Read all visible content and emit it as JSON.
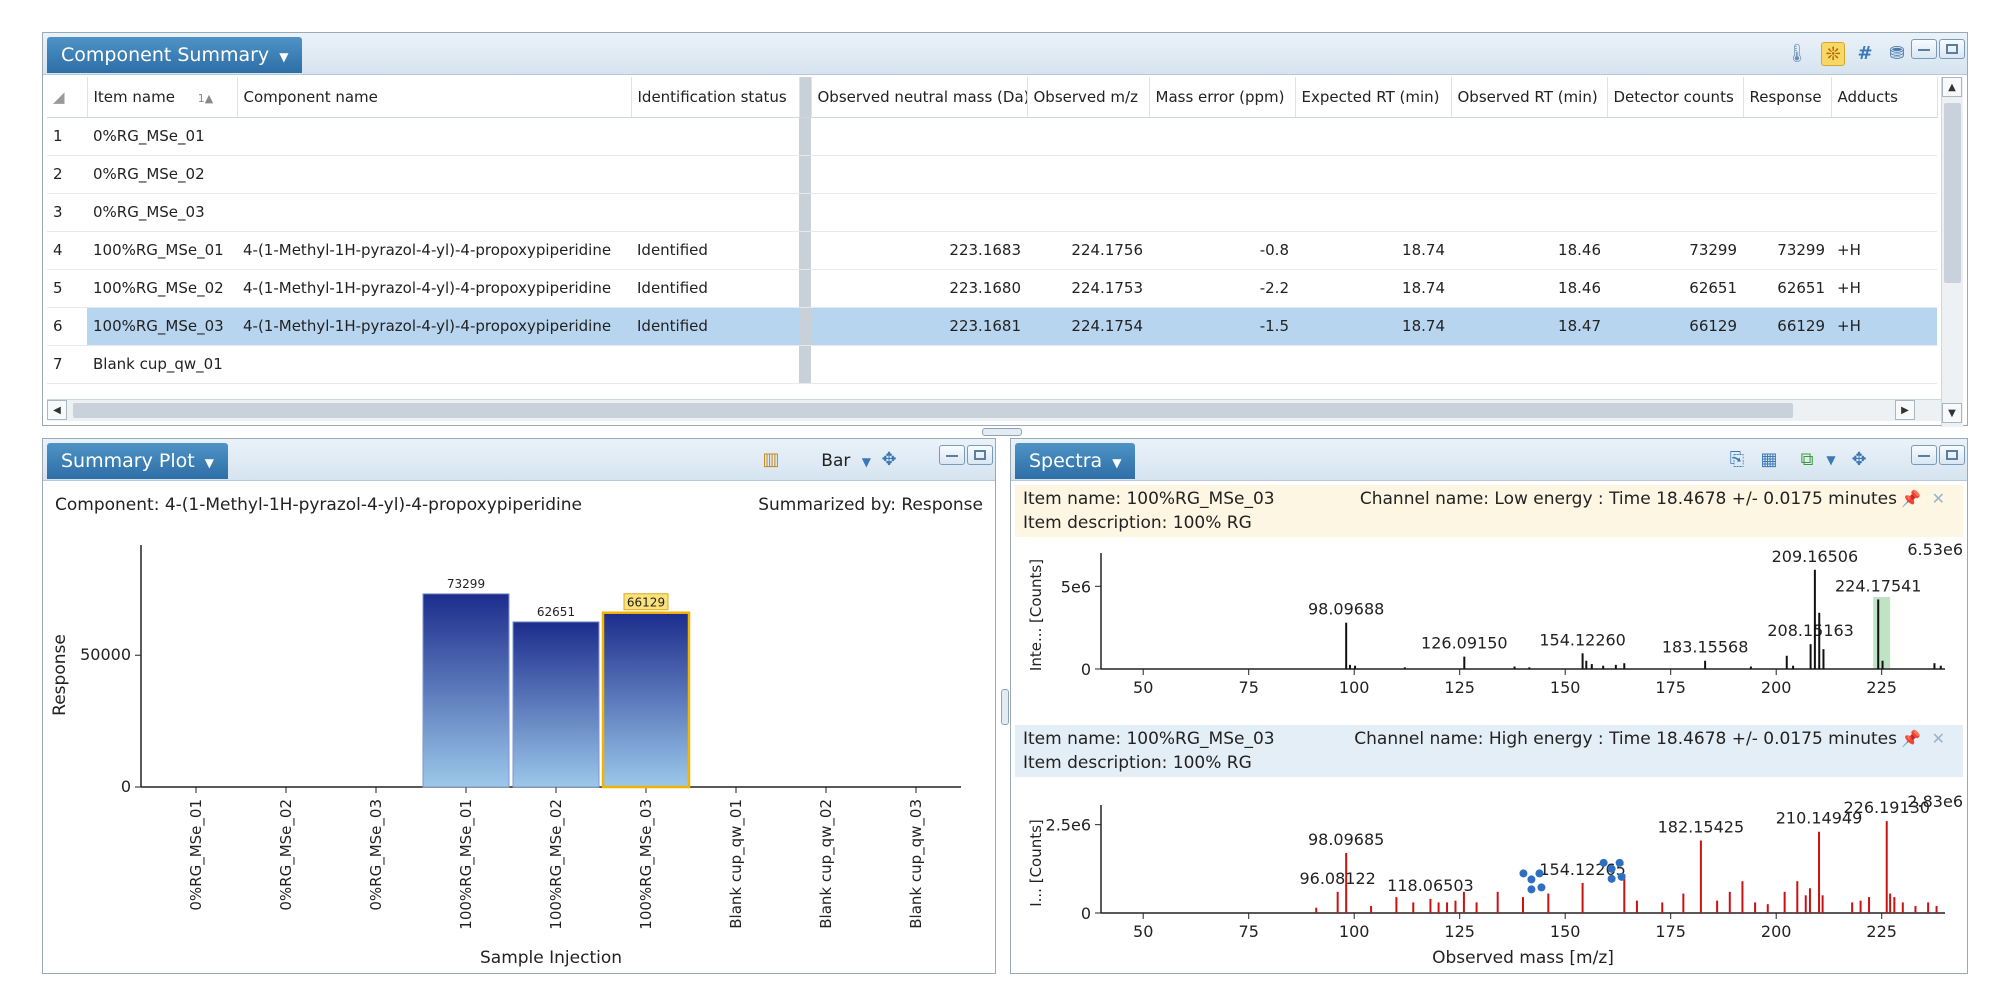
{
  "component_summary": {
    "title": "Component Summary",
    "columns": [
      "Item name",
      "Component name",
      "Identification status",
      "Observed neutral mass (Da)",
      "Observed m/z",
      "Mass error (ppm)",
      "Expected RT (min)",
      "Observed RT (min)",
      "Detector counts",
      "Response",
      "Adducts"
    ],
    "sort_indicator": "1▲",
    "rows": [
      {
        "index": "1",
        "item": "0%RG_MSe_01",
        "component": "",
        "status": "",
        "neutral_mass": "",
        "mz": "",
        "mass_error": "",
        "expected_rt": "",
        "observed_rt": "",
        "detector_counts": "",
        "response": "",
        "adducts": ""
      },
      {
        "index": "2",
        "item": "0%RG_MSe_02",
        "component": "",
        "status": "",
        "neutral_mass": "",
        "mz": "",
        "mass_error": "",
        "expected_rt": "",
        "observed_rt": "",
        "detector_counts": "",
        "response": "",
        "adducts": ""
      },
      {
        "index": "3",
        "item": "0%RG_MSe_03",
        "component": "",
        "status": "",
        "neutral_mass": "",
        "mz": "",
        "mass_error": "",
        "expected_rt": "",
        "observed_rt": "",
        "detector_counts": "",
        "response": "",
        "adducts": ""
      },
      {
        "index": "4",
        "item": "100%RG_MSe_01",
        "component": "4-(1-Methyl-1H-pyrazol-4-yl)-4-propoxypiperidine",
        "status": "Identified",
        "neutral_mass": "223.1683",
        "mz": "224.1756",
        "mass_error": "-0.8",
        "expected_rt": "18.74",
        "observed_rt": "18.46",
        "detector_counts": "73299",
        "response": "73299",
        "adducts": "+H"
      },
      {
        "index": "5",
        "item": "100%RG_MSe_02",
        "component": "4-(1-Methyl-1H-pyrazol-4-yl)-4-propoxypiperidine",
        "status": "Identified",
        "neutral_mass": "223.1680",
        "mz": "224.1753",
        "mass_error": "-2.2",
        "expected_rt": "18.74",
        "observed_rt": "18.46",
        "detector_counts": "62651",
        "response": "62651",
        "adducts": "+H"
      },
      {
        "index": "6",
        "item": "100%RG_MSe_03",
        "component": "4-(1-Methyl-1H-pyrazol-4-yl)-4-propoxypiperidine",
        "status": "Identified",
        "neutral_mass": "223.1681",
        "mz": "224.1754",
        "mass_error": "-1.5",
        "expected_rt": "18.74",
        "observed_rt": "18.47",
        "detector_counts": "66129",
        "response": "66129",
        "adducts": "+H",
        "selected": true
      },
      {
        "index": "7",
        "item": "Blank cup_qw_01",
        "component": "",
        "status": "",
        "neutral_mass": "",
        "mz": "",
        "mass_error": "",
        "expected_rt": "",
        "observed_rt": "",
        "detector_counts": "",
        "response": "",
        "adducts": ""
      }
    ]
  },
  "summary_plot": {
    "title": "Summary Plot",
    "chart_type_label": "Bar",
    "component_label": "Component: 4-(1-Methyl-1H-pyrazol-4-yl)-4-propoxypiperidine",
    "summarized_label": "Summarized by: Response"
  },
  "spectra": {
    "title": "Spectra",
    "low": {
      "item_name": "Item name: 100%RG_MSe_03",
      "item_description": "Item description: 100% RG",
      "channel": "Channel name: Low energy : Time 18.4678 +/- 0.0175 minutes"
    },
    "high": {
      "item_name": "Item name: 100%RG_MSe_03",
      "item_description": "Item description: 100% RG",
      "channel": "Channel name: High energy : Time 18.4678 +/- 0.0175 minutes"
    }
  },
  "colors": {
    "bar_top": "#1c2c8c",
    "bar_bottom": "#9cc8ea",
    "selected_outline": "#f0b400",
    "low_spectrum": "#111111",
    "high_spectrum": "#cc1111",
    "highlight_band": "#bfe3c4",
    "row_selected": "#b7d5ef"
  },
  "chart_data": [
    {
      "type": "bar",
      "title": "",
      "xlabel": "Sample Injection",
      "ylabel": "Response",
      "categories": [
        "0%RG_MSe_01",
        "0%RG_MSe_02",
        "0%RG_MSe_03",
        "100%RG_MSe_01",
        "100%RG_MSe_02",
        "100%RG_MSe_03",
        "Blank cup_qw_01",
        "Blank cup_qw_02",
        "Blank cup_qw_03"
      ],
      "values": [
        0,
        0,
        0,
        73299,
        62651,
        66129,
        0,
        0,
        0
      ],
      "data_labels": [
        "",
        "",
        "",
        "73299",
        "62651",
        "66129",
        "",
        "",
        ""
      ],
      "selected_index": 5,
      "y_ticks": [
        0,
        50000
      ],
      "y_tick_labels": [
        "0",
        "50000"
      ],
      "ylim": [
        0,
        85000
      ]
    },
    {
      "type": "bar",
      "title": "",
      "ylabel": "Inte... [Counts]",
      "xlabel": "",
      "max_label": "6.53e6",
      "xlim": [
        40,
        240
      ],
      "ylim": [
        0,
        6530000.0
      ],
      "x_ticks": [
        50,
        75,
        100,
        125,
        150,
        175,
        200,
        225
      ],
      "y_ticks": [
        0,
        5000000.0
      ],
      "y_tick_labels": [
        "0",
        "5e6"
      ],
      "highlight_range": [
        223,
        227
      ],
      "peaks": [
        {
          "x": 98.09688,
          "y": 2800000.0,
          "label": "98.09688"
        },
        {
          "x": 99.0,
          "y": 250000.0
        },
        {
          "x": 100.2,
          "y": 200000.0
        },
        {
          "x": 112.0,
          "y": 100000.0
        },
        {
          "x": 126.0915,
          "y": 750000.0,
          "label": "126.09150"
        },
        {
          "x": 138.0,
          "y": 150000.0
        },
        {
          "x": 141.5,
          "y": 100000.0
        },
        {
          "x": 154.1226,
          "y": 950000.0,
          "label": "154.12260"
        },
        {
          "x": 155.0,
          "y": 500000.0
        },
        {
          "x": 156.3,
          "y": 300000.0
        },
        {
          "x": 159.0,
          "y": 200000.0
        },
        {
          "x": 162.0,
          "y": 250000.0
        },
        {
          "x": 164.0,
          "y": 350000.0
        },
        {
          "x": 183.15568,
          "y": 500000.0,
          "label": "183.15568"
        },
        {
          "x": 194.0,
          "y": 150000.0
        },
        {
          "x": 202.5,
          "y": 800000.0
        },
        {
          "x": 204.0,
          "y": 200000.0
        },
        {
          "x": 208.15163,
          "y": 1500000.0,
          "label": "208.15163"
        },
        {
          "x": 209.16506,
          "y": 6000000.0,
          "label": "209.16506"
        },
        {
          "x": 210.2,
          "y": 3400000.0
        },
        {
          "x": 211.2,
          "y": 1200000.0
        },
        {
          "x": 224.17541,
          "y": 4200000.0,
          "label": "224.17541"
        },
        {
          "x": 225.2,
          "y": 500000.0
        },
        {
          "x": 237.5,
          "y": 350000.0
        },
        {
          "x": 239.0,
          "y": 200000.0
        }
      ]
    },
    {
      "type": "bar",
      "title": "",
      "ylabel": "I... [Counts]",
      "xlabel": "Observed mass [m/z]",
      "max_label": "2.83e6",
      "xlim": [
        40,
        240
      ],
      "ylim": [
        0,
        2830000.0
      ],
      "x_ticks": [
        50,
        75,
        100,
        125,
        150,
        175,
        200,
        225
      ],
      "y_ticks": [
        0,
        2500000.0
      ],
      "y_tick_labels": [
        "0",
        "2.5e6"
      ],
      "peaks": [
        {
          "x": 91.0,
          "y": 150000.0
        },
        {
          "x": 96.08122,
          "y": 600000.0,
          "label": "96.08122"
        },
        {
          "x": 98.09685,
          "y": 1700000.0,
          "label": "98.09685"
        },
        {
          "x": 104.0,
          "y": 200000.0
        },
        {
          "x": 110.0,
          "y": 450000.0
        },
        {
          "x": 114.0,
          "y": 300000.0
        },
        {
          "x": 118.06503,
          "y": 400000.0,
          "label": "118.06503"
        },
        {
          "x": 120.0,
          "y": 300000.0
        },
        {
          "x": 122.0,
          "y": 300000.0
        },
        {
          "x": 124.0,
          "y": 350000.0
        },
        {
          "x": 126.0,
          "y": 600000.0
        },
        {
          "x": 129.0,
          "y": 300000.0
        },
        {
          "x": 134.0,
          "y": 600000.0
        },
        {
          "x": 140.0,
          "y": 450000.0
        },
        {
          "x": 146.0,
          "y": 550000.0
        },
        {
          "x": 154.12265,
          "y": 850000.0,
          "label": "154.12265"
        },
        {
          "x": 164.0,
          "y": 1100000.0
        },
        {
          "x": 167.0,
          "y": 350000.0
        },
        {
          "x": 173.0,
          "y": 300000.0
        },
        {
          "x": 178.0,
          "y": 550000.0
        },
        {
          "x": 182.15425,
          "y": 2050000.0,
          "label": "182.15425"
        },
        {
          "x": 186.0,
          "y": 350000.0
        },
        {
          "x": 189.0,
          "y": 600000.0
        },
        {
          "x": 192.0,
          "y": 900000.0
        },
        {
          "x": 195.0,
          "y": 300000.0
        },
        {
          "x": 198.0,
          "y": 250000.0
        },
        {
          "x": 202.0,
          "y": 600000.0
        },
        {
          "x": 205.0,
          "y": 900000.0
        },
        {
          "x": 207.0,
          "y": 500000.0
        },
        {
          "x": 208.0,
          "y": 700000.0
        },
        {
          "x": 210.14949,
          "y": 2300000.0,
          "label": "210.14949"
        },
        {
          "x": 211.0,
          "y": 500000.0
        },
        {
          "x": 218.0,
          "y": 300000.0
        },
        {
          "x": 220.0,
          "y": 350000.0
        },
        {
          "x": 222.0,
          "y": 450000.0
        },
        {
          "x": 226.1913,
          "y": 2600000.0,
          "label": "226.19130"
        },
        {
          "x": 227.0,
          "y": 550000.0
        },
        {
          "x": 228.0,
          "y": 450000.0
        },
        {
          "x": 230.0,
          "y": 300000.0
        },
        {
          "x": 233.0,
          "y": 200000.0
        },
        {
          "x": 236.0,
          "y": 300000.0
        },
        {
          "x": 238.0,
          "y": 200000.0
        }
      ]
    }
  ]
}
